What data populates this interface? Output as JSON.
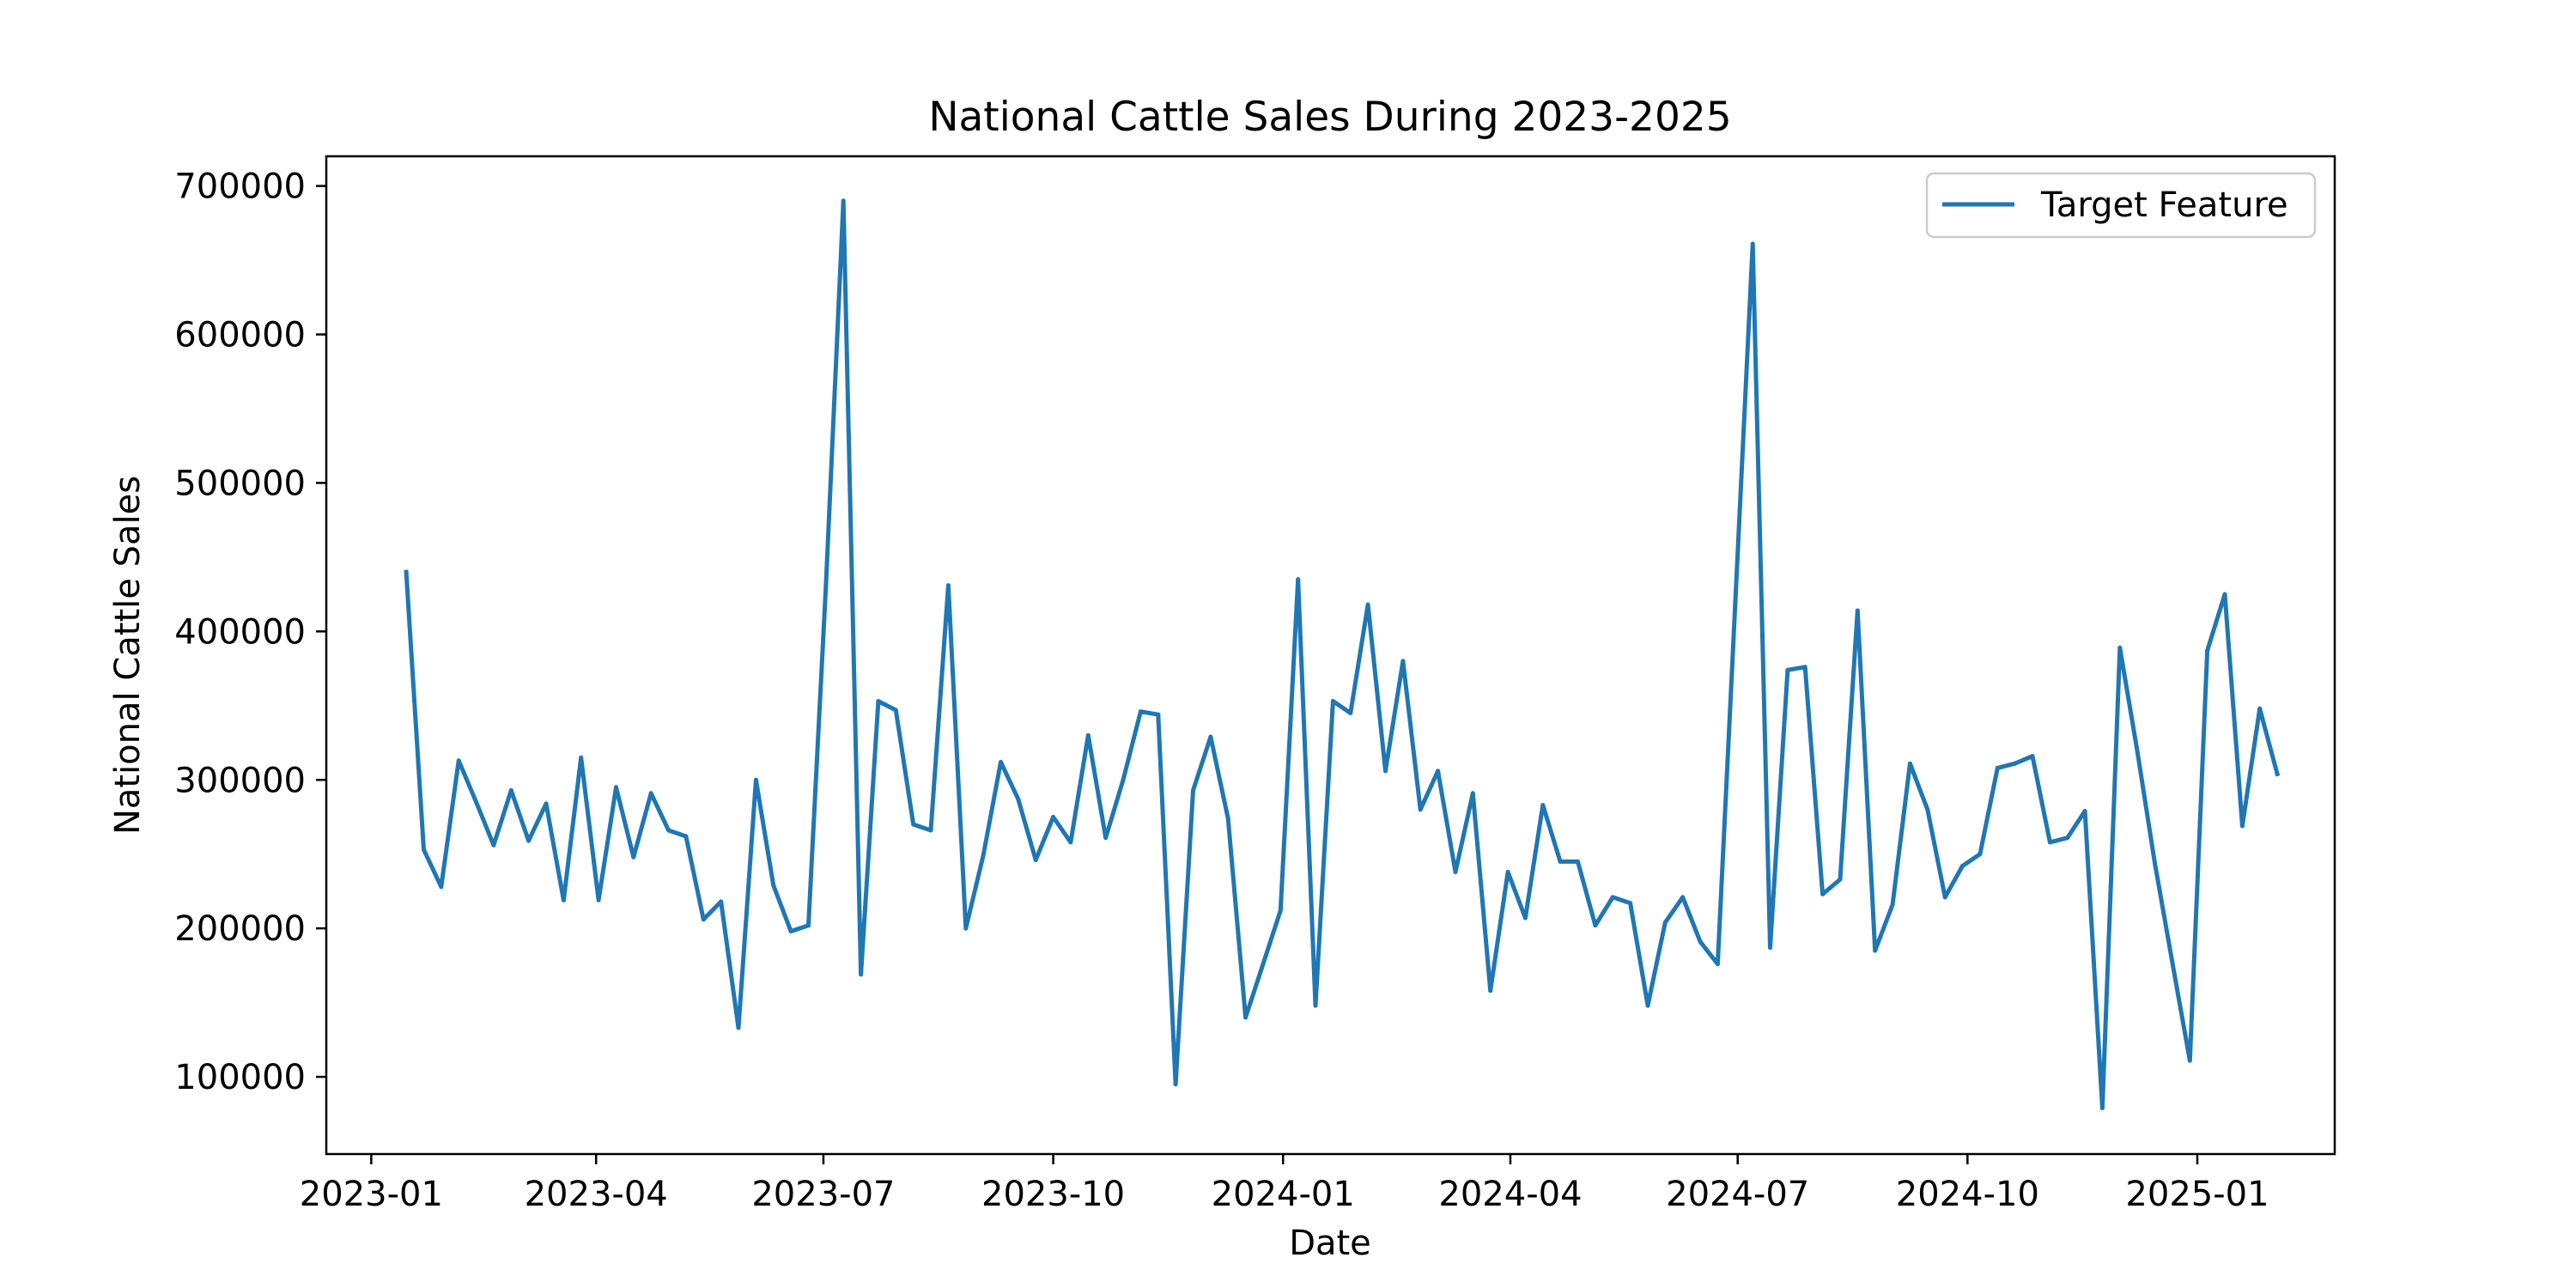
{
  "chart_data": {
    "type": "line",
    "title": "National Cattle Sales During 2023-2025",
    "xlabel": "Date",
    "ylabel": "National Cattle Sales",
    "xlim": [
      "2022-12-14",
      "2025-02-25"
    ],
    "ylim": [
      48000,
      720000
    ],
    "xticks": [
      {
        "date": "2023-01-01",
        "label": "2023-01"
      },
      {
        "date": "2023-04-01",
        "label": "2023-04"
      },
      {
        "date": "2023-07-01",
        "label": "2023-07"
      },
      {
        "date": "2023-10-01",
        "label": "2023-10"
      },
      {
        "date": "2024-01-01",
        "label": "2024-01"
      },
      {
        "date": "2024-04-01",
        "label": "2024-04"
      },
      {
        "date": "2024-07-01",
        "label": "2024-07"
      },
      {
        "date": "2024-10-01",
        "label": "2024-10"
      },
      {
        "date": "2025-01-01",
        "label": "2025-01"
      }
    ],
    "yticks": [
      {
        "value": 100000,
        "label": "100000"
      },
      {
        "value": 200000,
        "label": "200000"
      },
      {
        "value": 300000,
        "label": "300000"
      },
      {
        "value": 400000,
        "label": "400000"
      },
      {
        "value": 500000,
        "label": "500000"
      },
      {
        "value": 600000,
        "label": "600000"
      },
      {
        "value": 700000,
        "label": "700000"
      }
    ],
    "grid": false,
    "legend": {
      "position": "top-right",
      "entries": [
        "Target Feature"
      ]
    },
    "series": [
      {
        "name": "Target Feature",
        "color": "#1f77b4",
        "x": [
          "2023-01-15",
          "2023-01-22",
          "2023-01-29",
          "2023-02-05",
          "2023-02-12",
          "2023-02-19",
          "2023-02-26",
          "2023-03-05",
          "2023-03-12",
          "2023-03-19",
          "2023-03-26",
          "2023-04-02",
          "2023-04-09",
          "2023-04-16",
          "2023-04-23",
          "2023-04-30",
          "2023-05-07",
          "2023-05-14",
          "2023-05-21",
          "2023-05-28",
          "2023-06-04",
          "2023-06-11",
          "2023-06-18",
          "2023-06-25",
          "2023-07-02",
          "2023-07-09",
          "2023-07-16",
          "2023-07-23",
          "2023-07-30",
          "2023-08-06",
          "2023-08-13",
          "2023-08-20",
          "2023-08-27",
          "2023-09-03",
          "2023-09-10",
          "2023-09-17",
          "2023-09-24",
          "2023-10-01",
          "2023-10-08",
          "2023-10-15",
          "2023-10-22",
          "2023-10-29",
          "2023-11-05",
          "2023-11-12",
          "2023-11-19",
          "2023-11-26",
          "2023-12-03",
          "2023-12-10",
          "2023-12-17",
          "2023-12-24",
          "2023-12-31",
          "2024-01-07",
          "2024-01-14",
          "2024-01-21",
          "2024-01-28",
          "2024-02-04",
          "2024-02-11",
          "2024-02-18",
          "2024-02-25",
          "2024-03-03",
          "2024-03-10",
          "2024-03-17",
          "2024-03-24",
          "2024-03-31",
          "2024-04-07",
          "2024-04-14",
          "2024-04-21",
          "2024-04-28",
          "2024-05-05",
          "2024-05-12",
          "2024-05-19",
          "2024-05-26",
          "2024-06-02",
          "2024-06-09",
          "2024-06-16",
          "2024-06-23",
          "2024-06-30",
          "2024-07-07",
          "2024-07-14",
          "2024-07-21",
          "2024-07-28",
          "2024-08-04",
          "2024-08-11",
          "2024-08-18",
          "2024-08-25",
          "2024-09-01",
          "2024-09-08",
          "2024-09-15",
          "2024-09-22",
          "2024-09-29",
          "2024-10-06",
          "2024-10-13",
          "2024-10-20",
          "2024-10-27",
          "2024-11-03",
          "2024-11-10",
          "2024-11-17",
          "2024-11-24",
          "2024-12-01",
          "2024-12-08",
          "2024-12-15",
          "2024-12-22",
          "2024-12-29",
          "2025-01-05",
          "2025-01-12",
          "2025-01-19",
          "2025-01-26",
          "2025-02-02"
        ],
        "y": [
          440000,
          253000,
          228000,
          313000,
          285000,
          256000,
          293000,
          259000,
          284000,
          219000,
          315000,
          219000,
          295000,
          248000,
          291000,
          266000,
          262000,
          206000,
          218000,
          133000,
          300000,
          229000,
          198000,
          202000,
          430000,
          690000,
          169000,
          353000,
          347000,
          270000,
          266000,
          431000,
          200000,
          249000,
          312000,
          287000,
          246000,
          275000,
          258000,
          330000,
          261000,
          300000,
          346000,
          344000,
          95000,
          293000,
          329000,
          274000,
          140000,
          176000,
          212000,
          435000,
          148000,
          353000,
          345000,
          418000,
          306000,
          380000,
          280000,
          306000,
          238000,
          291000,
          158000,
          238000,
          207000,
          283000,
          245000,
          245000,
          202000,
          221000,
          217000,
          148000,
          204000,
          221000,
          191000,
          176000,
          418000,
          661000,
          187000,
          374000,
          376000,
          223000,
          233000,
          414000,
          185000,
          216000,
          311000,
          280000,
          221000,
          242000,
          250000,
          308000,
          311000,
          316000,
          258000,
          261000,
          279000,
          79000,
          389000,
          319000,
          244000,
          177000,
          111000,
          387000,
          425000,
          269000,
          348000,
          304000
        ]
      }
    ]
  }
}
